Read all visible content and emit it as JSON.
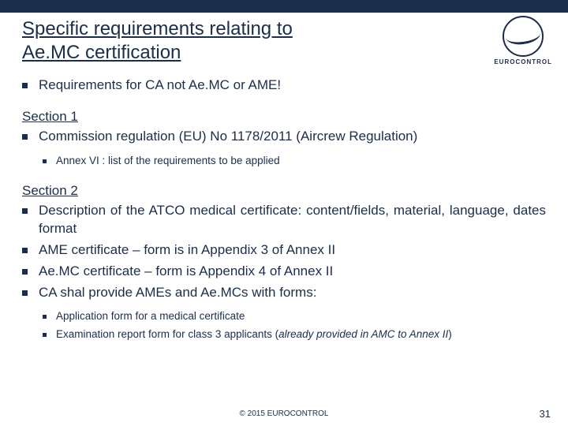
{
  "colors": {
    "brand": "#1a2e4a",
    "background": "#ffffff"
  },
  "title_line1": "Specific requirements relating to",
  "title_line2": "Ae.MC certification",
  "logo_label": "EUROCONTROL",
  "intro_bullet": "Requirements for CA not Ae.MC or AME!",
  "section1": {
    "heading": "Section 1",
    "bullets": [
      "Commission regulation (EU) No 1178/2011 (Aircrew Regulation)"
    ],
    "sub_bullets": [
      "Annex VI : list of the requirements to be applied"
    ]
  },
  "section2": {
    "heading": "Section 2",
    "bullets": [
      "Description of the ATCO medical certificate: content/fields, material, language, dates format",
      "AME certificate – form is in Appendix 3 of Annex II",
      "Ae.MC certificate – form is Appendix 4 of Annex II",
      "CA shal provide AMEs and Ae.MCs with forms:"
    ],
    "sub_bullets": [
      {
        "text": "Application form for a medical certificate",
        "italic_suffix": ""
      },
      {
        "text": "Examination report form for class 3 applicants (",
        "italic_suffix": "already provided in AMC to Annex II",
        "close": ")"
      }
    ]
  },
  "footer": "© 2015 EUROCONTROL",
  "page_number": "31"
}
